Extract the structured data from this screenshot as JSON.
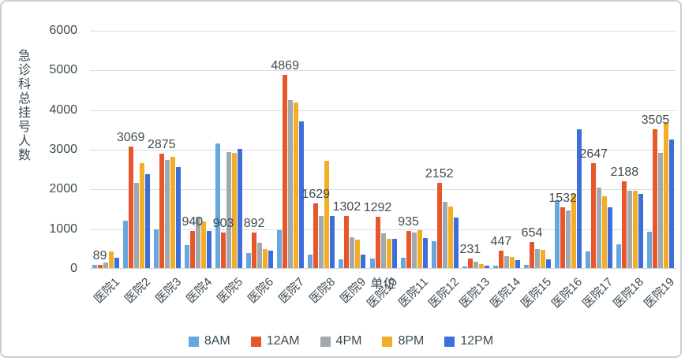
{
  "chart_data": {
    "type": "bar",
    "title": "",
    "xlabel": "单位",
    "ylabel": "急诊科总挂号人数",
    "ylim": [
      0,
      6000
    ],
    "ytick_step": 1000,
    "grid": true,
    "legend_position": "bottom",
    "labels_shown_for_series": "12AM",
    "categories": [
      "医院1",
      "医院2",
      "医院3",
      "医院4",
      "医院5",
      "医院6",
      "医院7",
      "医院8",
      "医院9",
      "医院10",
      "医院11",
      "医院12",
      "医院13",
      "医院14",
      "医院15",
      "医院16",
      "医院17",
      "医院18",
      "医院19"
    ],
    "series": [
      {
        "name": "8AM",
        "color": "#66A8DE",
        "show_labels": false,
        "values": [
          85,
          1200,
          970,
          580,
          3130,
          370,
          950,
          340,
          220,
          245,
          265,
          680,
          40,
          55,
          70,
          1710,
          425,
          590,
          920
        ]
      },
      {
        "name": "12AM",
        "color": "#E8562B",
        "show_labels": true,
        "values": [
          89,
          3069,
          2875,
          940,
          903,
          892,
          4869,
          1629,
          1302,
          1292,
          935,
          2152,
          231,
          447,
          654,
          1532,
          2647,
          2188,
          3505
        ]
      },
      {
        "name": "4PM",
        "color": "#9FA9AE",
        "show_labels": false,
        "values": [
          140,
          2150,
          2720,
          1290,
          2920,
          640,
          4230,
          1310,
          780,
          875,
          890,
          1670,
          160,
          300,
          480,
          1460,
          2030,
          1940,
          2900
        ]
      },
      {
        "name": "8PM",
        "color": "#F4AE26",
        "show_labels": false,
        "values": [
          420,
          2640,
          2810,
          1165,
          2900,
          475,
          4180,
          2700,
          720,
          735,
          955,
          1545,
          100,
          280,
          450,
          1870,
          1805,
          1940,
          3680
        ]
      },
      {
        "name": "12PM",
        "color": "#3D6ED9",
        "show_labels": false,
        "values": [
          250,
          2360,
          2550,
          930,
          3000,
          435,
          3700,
          1320,
          340,
          735,
          760,
          1265,
          60,
          190,
          220,
          3500,
          1540,
          1870,
          3240
        ]
      }
    ],
    "colors": {
      "text": "#3C4A52",
      "gridline": "#D8DEDF",
      "frame_border": "#C9D0CF",
      "background": "#FFFFFF"
    }
  }
}
